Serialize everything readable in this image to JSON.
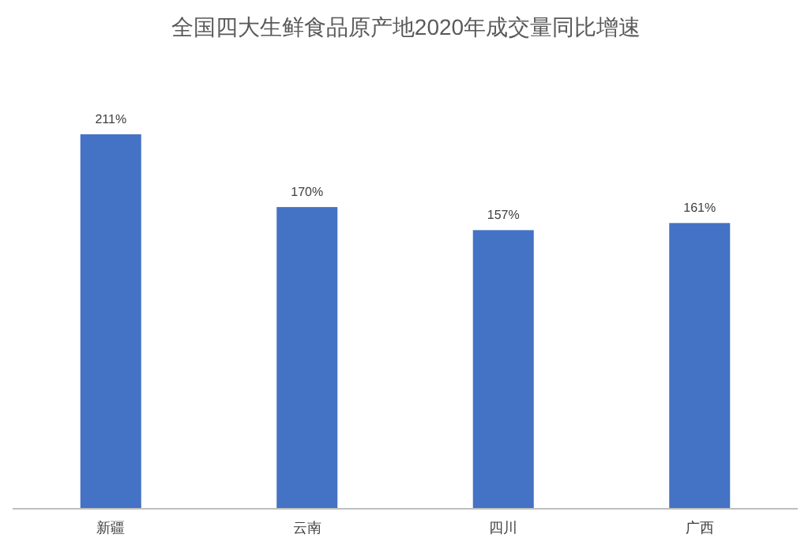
{
  "chart_data": {
    "type": "bar",
    "title": "全国四大生鲜食品原产地2020年成交量同比增速",
    "categories": [
      "新疆",
      "云南",
      "四川",
      "广西"
    ],
    "values": [
      211,
      170,
      157,
      161
    ],
    "value_labels": [
      "211%",
      "170%",
      "157%",
      "161%"
    ],
    "color": "#4472c4"
  }
}
